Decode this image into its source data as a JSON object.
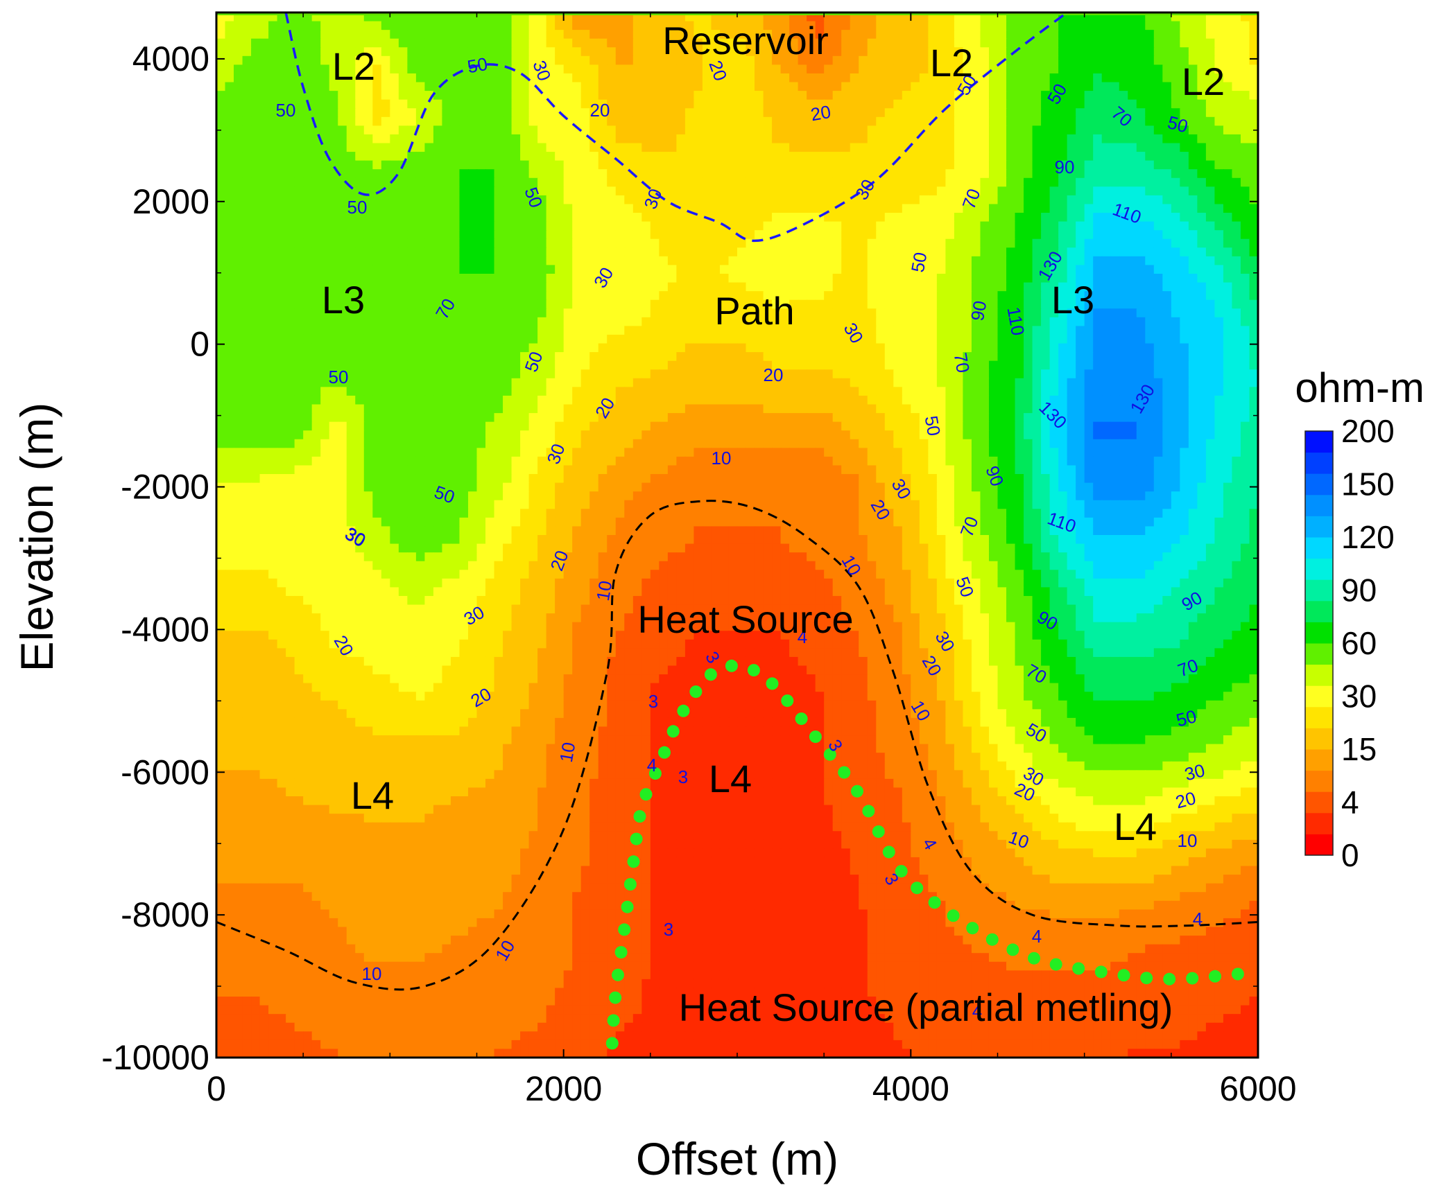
{
  "chart_data": {
    "type": "heatmap",
    "xlabel": "Offset (m)",
    "ylabel": "Elevation (m)",
    "xlim": [
      0,
      6000
    ],
    "ylim": [
      -10000,
      4650
    ],
    "x_ticks": [
      "0",
      "2000",
      "4000",
      "6000"
    ],
    "y_ticks": [
      "4000",
      "2000",
      "0",
      "-2000",
      "-4000",
      "-6000",
      "-8000",
      "-10000"
    ],
    "colorbar": {
      "title": "ohm-m",
      "tick_labels": [
        "0",
        "4",
        "15",
        "30",
        "60",
        "90",
        "120",
        "150",
        "200"
      ],
      "colors": [
        "#ff0000",
        "#ff2a00",
        "#ff5500",
        "#ff8000",
        "#ffa000",
        "#ffc400",
        "#ffe400",
        "#ffff20",
        "#c8ff00",
        "#60f000",
        "#00e000",
        "#00e85a",
        "#00f0a0",
        "#00f0e0",
        "#00d8ff",
        "#00b0ff",
        "#0090ff",
        "#0068ff",
        "#0040ff",
        "#0010ff"
      ]
    },
    "contour_levels": [
      "3",
      "4",
      "10",
      "20",
      "30",
      "50",
      "70",
      "90",
      "110",
      "130"
    ],
    "region_labels": [
      "Reservoir",
      "L2",
      "L2",
      "L2",
      "L3",
      "L3",
      "Path",
      "Heat Source",
      "L4",
      "L4",
      "L4",
      "Heat Source (partial metling)"
    ],
    "field": {
      "rows_top_to_bottom": [
        [
          30,
          40,
          55,
          40,
          55,
          55,
          55,
          55,
          30,
          10,
          12,
          18,
          22,
          18,
          12,
          4,
          12,
          18,
          22,
          35,
          55,
          60,
          70,
          65,
          45,
          30,
          25
        ],
        [
          40,
          55,
          55,
          45,
          25,
          55,
          55,
          55,
          30,
          25,
          15,
          15,
          20,
          25,
          15,
          8,
          15,
          18,
          22,
          30,
          55,
          60,
          70,
          65,
          55,
          35,
          25
        ],
        [
          55,
          55,
          55,
          50,
          22,
          35,
          55,
          60,
          30,
          30,
          18,
          18,
          22,
          25,
          20,
          18,
          20,
          22,
          25,
          30,
          55,
          65,
          80,
          75,
          60,
          45,
          40
        ],
        [
          55,
          55,
          55,
          55,
          50,
          55,
          60,
          60,
          45,
          30,
          25,
          22,
          22,
          22,
          22,
          22,
          22,
          22,
          25,
          30,
          55,
          70,
          90,
          90,
          80,
          60,
          55
        ],
        [
          55,
          55,
          55,
          55,
          55,
          55,
          60,
          60,
          55,
          32,
          30,
          26,
          25,
          25,
          28,
          28,
          26,
          28,
          30,
          45,
          60,
          80,
          110,
          110,
          100,
          80,
          60
        ],
        [
          55,
          55,
          55,
          55,
          55,
          55,
          60,
          60,
          55,
          35,
          30,
          28,
          26,
          28,
          30,
          28,
          26,
          30,
          35,
          50,
          65,
          90,
          125,
          125,
          115,
          100,
          75
        ],
        [
          55,
          55,
          55,
          55,
          55,
          55,
          60,
          55,
          50,
          30,
          28,
          26,
          22,
          22,
          25,
          26,
          25,
          30,
          35,
          50,
          70,
          100,
          135,
          135,
          120,
          110,
          90
        ],
        [
          55,
          55,
          55,
          50,
          55,
          60,
          60,
          55,
          40,
          28,
          22,
          20,
          18,
          18,
          20,
          20,
          22,
          28,
          35,
          55,
          70,
          110,
          140,
          140,
          125,
          110,
          95
        ],
        [
          55,
          55,
          55,
          30,
          55,
          60,
          55,
          45,
          32,
          22,
          18,
          14,
          12,
          12,
          12,
          12,
          16,
          22,
          30,
          55,
          75,
          115,
          145,
          145,
          125,
          105,
          90
        ],
        [
          35,
          35,
          30,
          30,
          55,
          60,
          55,
          40,
          25,
          18,
          12,
          10,
          8,
          8,
          8,
          8,
          10,
          18,
          28,
          50,
          70,
          105,
          140,
          140,
          120,
          100,
          85
        ],
        [
          30,
          30,
          30,
          30,
          45,
          55,
          50,
          30,
          22,
          14,
          10,
          8,
          6,
          6,
          6,
          8,
          10,
          14,
          25,
          45,
          65,
          100,
          120,
          120,
          110,
          95,
          80
        ],
        [
          25,
          25,
          28,
          30,
          32,
          40,
          32,
          25,
          18,
          12,
          8,
          5,
          4,
          4,
          4,
          5,
          8,
          12,
          22,
          35,
          55,
          80,
          105,
          105,
          95,
          85,
          75
        ],
        [
          20,
          20,
          22,
          28,
          30,
          30,
          28,
          22,
          16,
          10,
          6,
          4,
          3,
          3,
          3,
          4,
          6,
          10,
          18,
          30,
          50,
          70,
          90,
          90,
          85,
          75,
          65
        ],
        [
          18,
          18,
          20,
          22,
          25,
          28,
          25,
          20,
          14,
          9,
          5,
          3,
          2.5,
          2.5,
          2.5,
          3,
          5,
          9,
          14,
          28,
          45,
          60,
          75,
          75,
          70,
          62,
          55
        ],
        [
          16,
          16,
          17,
          18,
          20,
          20,
          20,
          16,
          12,
          8,
          5,
          3,
          2.5,
          2.5,
          2.5,
          3,
          4,
          8,
          12,
          22,
          35,
          50,
          60,
          60,
          55,
          48,
          40
        ],
        [
          14,
          14,
          15,
          16,
          16,
          16,
          15,
          14,
          11,
          7,
          4.5,
          3,
          2.5,
          2.5,
          2.5,
          3,
          4,
          6,
          10,
          16,
          24,
          32,
          38,
          38,
          32,
          28,
          24
        ],
        [
          12,
          12,
          12,
          13,
          14,
          14,
          13,
          12,
          10,
          7,
          4.5,
          3,
          2.5,
          2.5,
          2.5,
          2.5,
          3.5,
          5,
          8,
          12,
          16,
          20,
          22,
          22,
          18,
          15,
          12
        ],
        [
          10,
          10,
          10,
          11,
          12,
          12,
          12,
          11,
          9,
          6,
          4,
          3,
          2.5,
          2.5,
          2.5,
          2.5,
          3,
          4.5,
          6,
          9,
          11,
          12,
          12,
          12,
          10,
          8,
          6
        ],
        [
          8,
          8,
          9,
          10,
          11,
          11,
          10,
          9,
          8,
          6,
          4,
          3,
          2.5,
          2.5,
          2.5,
          2.5,
          3,
          4,
          5,
          6,
          7,
          7,
          7,
          6,
          5,
          4,
          4
        ],
        [
          6,
          6,
          7,
          8,
          9,
          9,
          9,
          8,
          7,
          5,
          3.5,
          3,
          2.5,
          2.5,
          2.5,
          2.5,
          3,
          3.5,
          4,
          4.5,
          5,
          5,
          5,
          4.5,
          4,
          3.5,
          3
        ],
        [
          4,
          4,
          5,
          6,
          7,
          7,
          7,
          6,
          5,
          4,
          3,
          2.5,
          2.5,
          2.5,
          2.5,
          2.5,
          2.5,
          3,
          3.5,
          3.5,
          3.5,
          3.5,
          3.5,
          3,
          3,
          2.5,
          2.5
        ]
      ]
    },
    "black_dashed_contour_10": [
      [
        0,
        -8100
      ],
      [
        400,
        -8500
      ],
      [
        800,
        -8950
      ],
      [
        1200,
        -9000
      ],
      [
        1600,
        -8400
      ],
      [
        2000,
        -6800
      ],
      [
        2250,
        -4600
      ],
      [
        2300,
        -3200
      ],
      [
        2500,
        -2400
      ],
      [
        2800,
        -2200
      ],
      [
        3100,
        -2300
      ],
      [
        3400,
        -2700
      ],
      [
        3700,
        -3400
      ],
      [
        3900,
        -4600
      ],
      [
        4100,
        -6200
      ],
      [
        4350,
        -7400
      ],
      [
        4700,
        -8000
      ],
      [
        5200,
        -8150
      ],
      [
        5600,
        -8150
      ],
      [
        6000,
        -8100
      ]
    ],
    "blue_dashed_contour_30": [
      [
        400,
        4650
      ],
      [
        500,
        3600
      ],
      [
        650,
        2600
      ],
      [
        850,
        2100
      ],
      [
        1050,
        2400
      ],
      [
        1250,
        3500
      ],
      [
        1500,
        3900
      ],
      [
        1750,
        3800
      ],
      [
        2000,
        3200
      ],
      [
        2300,
        2600
      ],
      [
        2600,
        2000
      ],
      [
        2900,
        1700
      ],
      [
        3100,
        1450
      ],
      [
        3400,
        1700
      ],
      [
        3800,
        2300
      ],
      [
        4200,
        3300
      ],
      [
        4600,
        4100
      ],
      [
        4900,
        4650
      ]
    ],
    "partial_melting_boundary": [
      [
        2280,
        -9800
      ],
      [
        2300,
        -9100
      ],
      [
        2350,
        -8200
      ],
      [
        2400,
        -7300
      ],
      [
        2450,
        -6500
      ],
      [
        2550,
        -5900
      ],
      [
        2700,
        -5100
      ],
      [
        2900,
        -4550
      ],
      [
        3150,
        -4650
      ],
      [
        3450,
        -5500
      ],
      [
        3700,
        -6300
      ],
      [
        3950,
        -7400
      ],
      [
        4300,
        -8100
      ],
      [
        4700,
        -8600
      ],
      [
        5100,
        -8800
      ],
      [
        5500,
        -8900
      ],
      [
        6000,
        -8800
      ]
    ]
  }
}
